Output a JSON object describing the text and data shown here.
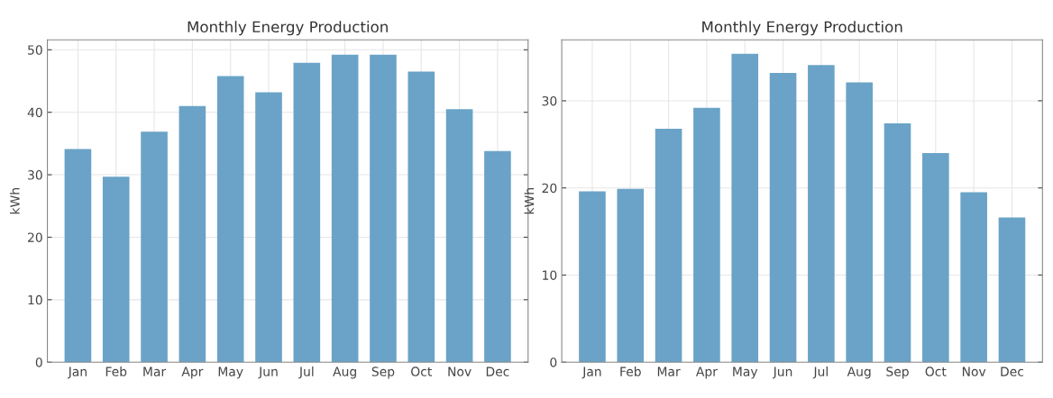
{
  "chart_data": [
    {
      "type": "bar",
      "title": "Monthly Energy Production",
      "ylabel": "kWh",
      "categories": [
        "Jan",
        "Feb",
        "Mar",
        "Apr",
        "May",
        "Jun",
        "Jul",
        "Aug",
        "Sep",
        "Oct",
        "Nov",
        "Dec"
      ],
      "values": [
        34.1,
        29.7,
        36.9,
        41.0,
        45.8,
        43.2,
        47.9,
        49.2,
        49.2,
        46.5,
        40.5,
        33.8
      ],
      "color": "#6aa3c7",
      "ylim": [
        0,
        51.6
      ],
      "yticks": [
        0,
        10,
        20,
        30,
        40,
        50
      ],
      "grid": true
    },
    {
      "type": "bar",
      "title": "Monthly Energy Production",
      "ylabel": "kWh",
      "categories": [
        "Jan",
        "Feb",
        "Mar",
        "Apr",
        "May",
        "Jun",
        "Jul",
        "Aug",
        "Sep",
        "Oct",
        "Nov",
        "Dec"
      ],
      "values": [
        19.6,
        19.9,
        26.8,
        29.2,
        35.4,
        33.2,
        34.1,
        32.1,
        27.4,
        24.0,
        19.5,
        16.6
      ],
      "color": "#6aa3c7",
      "ylim": [
        0,
        37.0
      ],
      "yticks": [
        0,
        10,
        20,
        30
      ],
      "grid": true
    }
  ]
}
